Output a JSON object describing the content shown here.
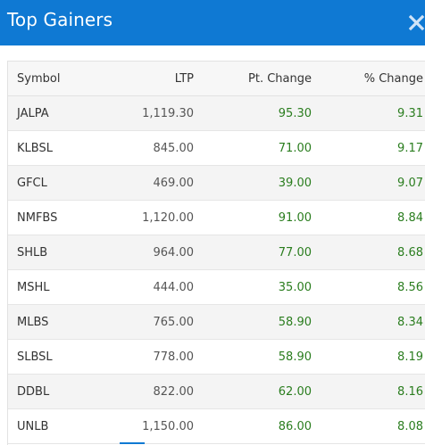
{
  "header": {
    "title": "Top Gainers",
    "close_icon": "close-icon"
  },
  "table": {
    "columns": {
      "symbol": "Symbol",
      "ltp": "LTP",
      "pt_change": "Pt. Change",
      "pct_change": "% Change"
    },
    "rows": [
      {
        "symbol": "JALPA",
        "ltp": "1,119.30",
        "pt_change": "95.30",
        "pct_change": "9.31"
      },
      {
        "symbol": "KLBSL",
        "ltp": "845.00",
        "pt_change": "71.00",
        "pct_change": "9.17"
      },
      {
        "symbol": "GFCL",
        "ltp": "469.00",
        "pt_change": "39.00",
        "pct_change": "9.07"
      },
      {
        "symbol": "NMFBS",
        "ltp": "1,120.00",
        "pt_change": "91.00",
        "pct_change": "8.84"
      },
      {
        "symbol": "SHLB",
        "ltp": "964.00",
        "pt_change": "77.00",
        "pct_change": "8.68"
      },
      {
        "symbol": "MSHL",
        "ltp": "444.00",
        "pt_change": "35.00",
        "pct_change": "8.56"
      },
      {
        "symbol": "MLBS",
        "ltp": "765.00",
        "pt_change": "58.90",
        "pct_change": "8.34"
      },
      {
        "symbol": "SLBSL",
        "ltp": "778.00",
        "pt_change": "58.90",
        "pct_change": "8.19"
      },
      {
        "symbol": "DDBL",
        "ltp": "822.00",
        "pt_change": "62.00",
        "pct_change": "8.16"
      },
      {
        "symbol": "UNLB",
        "ltp": "1,150.00",
        "pt_change": "86.00",
        "pct_change": "8.08"
      }
    ]
  },
  "colors": {
    "header_bg": "#0f79d3",
    "gain_text": "#2a7d1e"
  }
}
